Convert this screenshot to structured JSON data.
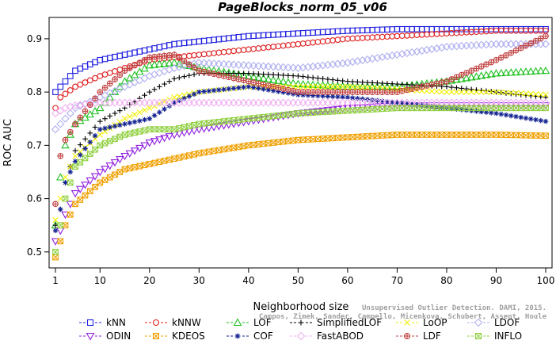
{
  "chart_data": {
    "type": "line",
    "title": "PageBlocks_norm_05_v06",
    "xlabel": "Neighborhood size",
    "ylabel": "ROC AUC",
    "xlim": [
      1,
      100
    ],
    "ylim": [
      0.47,
      0.94
    ],
    "x_ticks": [
      1,
      10,
      20,
      30,
      40,
      50,
      60,
      70,
      80,
      90,
      100
    ],
    "y_ticks": [
      0.5,
      0.6,
      0.7,
      0.8,
      0.9
    ],
    "grid": false,
    "legend_position": "bottom",
    "credit_lines": [
      "Unsupervised Outlier Detection. DAMI, 2015.",
      "Campos, Zimek, Sander, Campello, Micenkova, Schubert, Assent, Houle"
    ],
    "series": [
      {
        "name": "kNN",
        "color": "#2020e0",
        "marker": "square",
        "points": [
          [
            1,
            0.8
          ],
          [
            3,
            0.82
          ],
          [
            5,
            0.84
          ],
          [
            10,
            0.86
          ],
          [
            15,
            0.87
          ],
          [
            20,
            0.88
          ],
          [
            25,
            0.89
          ],
          [
            30,
            0.895
          ],
          [
            40,
            0.905
          ],
          [
            50,
            0.91
          ],
          [
            60,
            0.915
          ],
          [
            70,
            0.918
          ],
          [
            80,
            0.918
          ],
          [
            90,
            0.918
          ],
          [
            100,
            0.918
          ]
        ]
      },
      {
        "name": "kNNW",
        "color": "#e02020",
        "marker": "circle",
        "points": [
          [
            1,
            0.77
          ],
          [
            2,
            0.79
          ],
          [
            5,
            0.81
          ],
          [
            10,
            0.83
          ],
          [
            15,
            0.845
          ],
          [
            20,
            0.86
          ],
          [
            25,
            0.865
          ],
          [
            30,
            0.87
          ],
          [
            40,
            0.88
          ],
          [
            50,
            0.89
          ],
          [
            60,
            0.9
          ],
          [
            70,
            0.905
          ],
          [
            80,
            0.91
          ],
          [
            90,
            0.915
          ],
          [
            100,
            0.915
          ]
        ]
      },
      {
        "name": "LOF",
        "color": "#20c020",
        "marker": "triangle",
        "points": [
          [
            1,
            0.55
          ],
          [
            2,
            0.64
          ],
          [
            3,
            0.7
          ],
          [
            5,
            0.74
          ],
          [
            10,
            0.77
          ],
          [
            15,
            0.82
          ],
          [
            20,
            0.85
          ],
          [
            25,
            0.855
          ],
          [
            30,
            0.845
          ],
          [
            40,
            0.83
          ],
          [
            50,
            0.815
          ],
          [
            60,
            0.81
          ],
          [
            70,
            0.81
          ],
          [
            80,
            0.82
          ],
          [
            90,
            0.835
          ],
          [
            100,
            0.84
          ]
        ]
      },
      {
        "name": "SimplifiedLOF",
        "color": "#000000",
        "marker": "plus",
        "points": [
          [
            1,
            0.55
          ],
          [
            2,
            0.58
          ],
          [
            3,
            0.63
          ],
          [
            5,
            0.69
          ],
          [
            10,
            0.745
          ],
          [
            15,
            0.77
          ],
          [
            20,
            0.8
          ],
          [
            25,
            0.825
          ],
          [
            30,
            0.835
          ],
          [
            40,
            0.835
          ],
          [
            50,
            0.83
          ],
          [
            60,
            0.82
          ],
          [
            70,
            0.815
          ],
          [
            80,
            0.81
          ],
          [
            90,
            0.8
          ],
          [
            100,
            0.79
          ]
        ]
      },
      {
        "name": "LoOP",
        "color": "#f0f000",
        "marker": "x",
        "points": [
          [
            1,
            0.56
          ],
          [
            2,
            0.6
          ],
          [
            3,
            0.64
          ],
          [
            5,
            0.68
          ],
          [
            10,
            0.72
          ],
          [
            15,
            0.75
          ],
          [
            20,
            0.77
          ],
          [
            25,
            0.79
          ],
          [
            30,
            0.8
          ],
          [
            40,
            0.81
          ],
          [
            50,
            0.81
          ],
          [
            60,
            0.81
          ],
          [
            70,
            0.805
          ],
          [
            80,
            0.8
          ],
          [
            90,
            0.8
          ],
          [
            100,
            0.795
          ]
        ]
      },
      {
        "name": "LDOF",
        "color": "#b0b0f0",
        "marker": "diamond",
        "points": [
          [
            1,
            0.73
          ],
          [
            3,
            0.75
          ],
          [
            5,
            0.77
          ],
          [
            10,
            0.79
          ],
          [
            15,
            0.81
          ],
          [
            20,
            0.83
          ],
          [
            25,
            0.845
          ],
          [
            30,
            0.855
          ],
          [
            40,
            0.85
          ],
          [
            50,
            0.845
          ],
          [
            60,
            0.855
          ],
          [
            70,
            0.87
          ],
          [
            80,
            0.885
          ],
          [
            90,
            0.89
          ],
          [
            100,
            0.89
          ]
        ]
      },
      {
        "name": "ODIN",
        "color": "#9020e0",
        "marker": "triangle-down",
        "points": [
          [
            1,
            0.52
          ],
          [
            2,
            0.54
          ],
          [
            3,
            0.57
          ],
          [
            5,
            0.61
          ],
          [
            10,
            0.65
          ],
          [
            15,
            0.68
          ],
          [
            20,
            0.705
          ],
          [
            25,
            0.72
          ],
          [
            30,
            0.73
          ],
          [
            40,
            0.745
          ],
          [
            50,
            0.76
          ],
          [
            60,
            0.77
          ],
          [
            70,
            0.775
          ],
          [
            80,
            0.775
          ],
          [
            90,
            0.775
          ],
          [
            100,
            0.775
          ]
        ]
      },
      {
        "name": "KDEOS",
        "color": "#f0a000",
        "marker": "square-x",
        "points": [
          [
            1,
            0.49
          ],
          [
            2,
            0.52
          ],
          [
            3,
            0.55
          ],
          [
            5,
            0.59
          ],
          [
            10,
            0.63
          ],
          [
            15,
            0.655
          ],
          [
            20,
            0.665
          ],
          [
            25,
            0.675
          ],
          [
            30,
            0.685
          ],
          [
            40,
            0.7
          ],
          [
            50,
            0.71
          ],
          [
            60,
            0.715
          ],
          [
            70,
            0.72
          ],
          [
            80,
            0.72
          ],
          [
            90,
            0.72
          ],
          [
            100,
            0.718
          ]
        ]
      },
      {
        "name": "COF",
        "color": "#102090",
        "marker": "asterisk",
        "points": [
          [
            1,
            0.54
          ],
          [
            2,
            0.58
          ],
          [
            3,
            0.63
          ],
          [
            5,
            0.67
          ],
          [
            10,
            0.73
          ],
          [
            15,
            0.74
          ],
          [
            20,
            0.75
          ],
          [
            25,
            0.78
          ],
          [
            30,
            0.8
          ],
          [
            40,
            0.81
          ],
          [
            50,
            0.795
          ],
          [
            60,
            0.79
          ],
          [
            70,
            0.78
          ],
          [
            80,
            0.77
          ],
          [
            90,
            0.76
          ],
          [
            100,
            0.745
          ]
        ]
      },
      {
        "name": "FastABOD",
        "color": "#f0b0f0",
        "marker": "diamond",
        "points": [
          [
            1,
            0.76
          ],
          [
            3,
            0.77
          ],
          [
            5,
            0.775
          ],
          [
            10,
            0.78
          ],
          [
            20,
            0.78
          ],
          [
            30,
            0.78
          ],
          [
            40,
            0.78
          ],
          [
            50,
            0.78
          ],
          [
            60,
            0.78
          ],
          [
            70,
            0.78
          ],
          [
            80,
            0.78
          ],
          [
            90,
            0.78
          ],
          [
            100,
            0.78
          ]
        ]
      },
      {
        "name": "LDF",
        "color": "#c04040",
        "marker": "circle-plus",
        "points": [
          [
            1,
            0.59
          ],
          [
            2,
            0.68
          ],
          [
            3,
            0.71
          ],
          [
            5,
            0.74
          ],
          [
            10,
            0.8
          ],
          [
            15,
            0.84
          ],
          [
            20,
            0.865
          ],
          [
            25,
            0.87
          ],
          [
            30,
            0.84
          ],
          [
            40,
            0.82
          ],
          [
            50,
            0.8
          ],
          [
            60,
            0.8
          ],
          [
            70,
            0.8
          ],
          [
            80,
            0.82
          ],
          [
            90,
            0.86
          ],
          [
            100,
            0.905
          ]
        ]
      },
      {
        "name": "INFLO",
        "color": "#90d040",
        "marker": "square-x",
        "points": [
          [
            1,
            0.5
          ],
          [
            2,
            0.55
          ],
          [
            3,
            0.6
          ],
          [
            5,
            0.66
          ],
          [
            10,
            0.7
          ],
          [
            15,
            0.72
          ],
          [
            20,
            0.73
          ],
          [
            25,
            0.73
          ],
          [
            30,
            0.74
          ],
          [
            40,
            0.75
          ],
          [
            50,
            0.76
          ],
          [
            60,
            0.765
          ],
          [
            70,
            0.77
          ],
          [
            80,
            0.77
          ],
          [
            90,
            0.77
          ],
          [
            100,
            0.77
          ]
        ]
      }
    ]
  }
}
